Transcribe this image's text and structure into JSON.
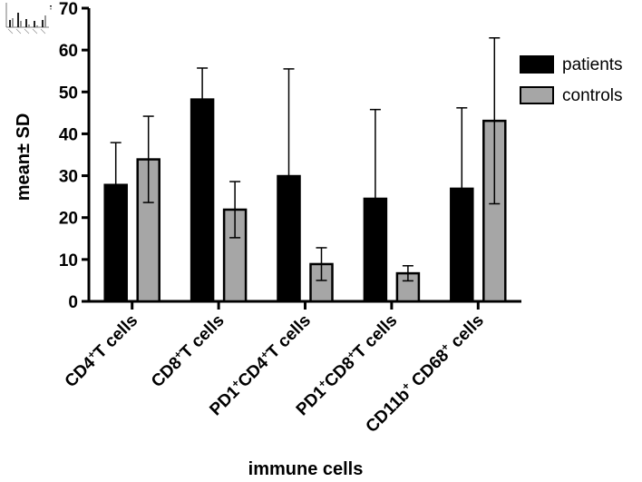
{
  "chart_data": {
    "type": "bar",
    "categories": [
      {
        "name": "CD4+T cells",
        "parts": [
          [
            "CD4",
            false
          ],
          [
            "+",
            true
          ],
          [
            "T cells",
            false
          ]
        ]
      },
      {
        "name": "CD8+T cells",
        "parts": [
          [
            "CD8",
            false
          ],
          [
            "+",
            true
          ],
          [
            "T cells",
            false
          ]
        ]
      },
      {
        "name": "PD1+CD4+T cells",
        "parts": [
          [
            "PD1",
            false
          ],
          [
            "+",
            true
          ],
          [
            "CD4",
            false
          ],
          [
            "+",
            true
          ],
          [
            "T cells",
            false
          ]
        ]
      },
      {
        "name": "PD1+CD8+T cells",
        "parts": [
          [
            "PD1",
            false
          ],
          [
            "+",
            true
          ],
          [
            "CD8",
            false
          ],
          [
            "+",
            true
          ],
          [
            "T cells",
            false
          ]
        ]
      },
      {
        "name": "CD11b+CD68+ cells",
        "parts": [
          [
            "CD11b",
            false
          ],
          [
            "+",
            true
          ],
          [
            " CD68",
            false
          ],
          [
            "+",
            true
          ],
          [
            " cells",
            false
          ]
        ]
      }
    ],
    "series": [
      {
        "name": "patients",
        "color": "#000000",
        "values": [
          27.8,
          48.2,
          29.9,
          24.5,
          26.9
        ],
        "sd": [
          10.1,
          7.5,
          25.6,
          21.3,
          19.3
        ]
      },
      {
        "name": "controls",
        "color": "#a6a6a6",
        "values": [
          33.9,
          21.9,
          8.9,
          6.7,
          43.1
        ],
        "sd": [
          10.3,
          6.7,
          3.9,
          1.8,
          19.8
        ]
      }
    ],
    "xlabel": "immune cells",
    "ylabel": "mean± SD",
    "ylim": [
      0,
      70
    ],
    "yticks": [
      0,
      10,
      20,
      30,
      40,
      50,
      60,
      70
    ],
    "legend_position": "right",
    "grid": false
  }
}
